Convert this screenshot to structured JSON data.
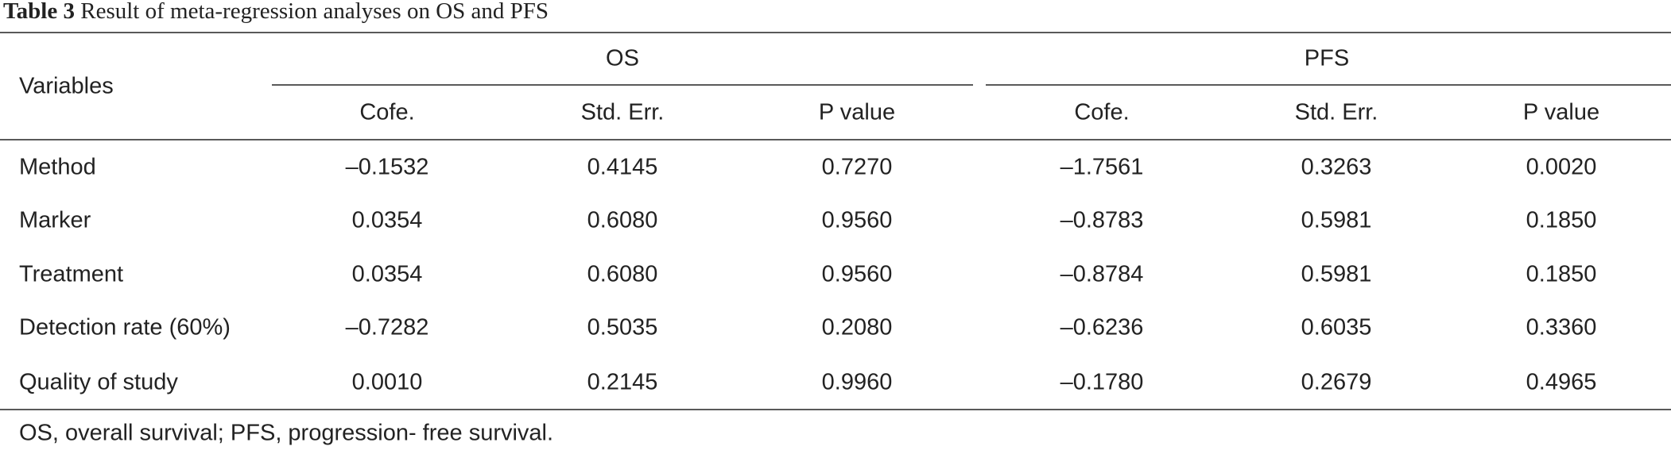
{
  "title": {
    "label": "Table 3",
    "text": "Result of meta-regression analyses on OS and PFS"
  },
  "table": {
    "row_header": "Variables",
    "groups": [
      "OS",
      "PFS"
    ],
    "columns": [
      "Cofe.",
      "Std. Err.",
      "P value",
      "Cofe.",
      "Std. Err.",
      "P value"
    ],
    "rows": [
      [
        "Method",
        "–0.1532",
        "0.4145",
        "0.7270",
        "–1.7561",
        "0.3263",
        "0.0020"
      ],
      [
        "Marker",
        "0.0354",
        "0.6080",
        "0.9560",
        "–0.8783",
        "0.5981",
        "0.1850"
      ],
      [
        "Treatment",
        "0.0354",
        "0.6080",
        "0.9560",
        "–0.8784",
        "0.5981",
        "0.1850"
      ],
      [
        "Detection rate (60%)",
        "–0.7282",
        "0.5035",
        "0.2080",
        "–0.6236",
        "0.6035",
        "0.3360"
      ],
      [
        "Quality of study",
        "0.0010",
        "0.2145",
        "0.9960",
        "–0.1780",
        "0.2679",
        "0.4965"
      ]
    ]
  },
  "footnote": "OS, overall survival; PFS, progression- free survival."
}
